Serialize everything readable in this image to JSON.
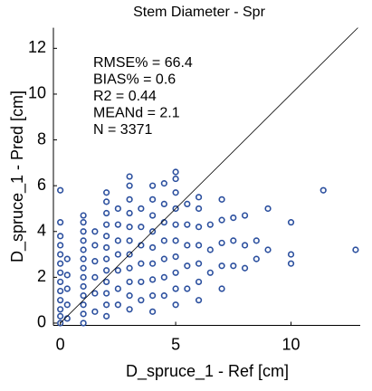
{
  "chart_data": {
    "type": "scatter",
    "title": "Stem Diameter - Spr",
    "xlabel": "D_spruce_1 - Ref [cm]",
    "ylabel": "D_spruce_1 - Pred [cm]",
    "annotations": [
      "RMSE% = 66.4",
      "BIAS% = 0.6",
      "R2 = 0.44",
      "MEANd = 2.1",
      "N = 3371"
    ],
    "color": "#2b4f9e",
    "xlim": [
      -0.3,
      13
    ],
    "ylim": [
      -0.1,
      12.9
    ],
    "xticks": [
      0,
      5,
      10
    ],
    "yticks": [
      0,
      2,
      4,
      6,
      8,
      10,
      12
    ],
    "x": [
      0,
      0,
      0,
      0,
      0,
      0,
      0,
      0,
      0,
      0,
      0,
      0,
      0,
      0.3,
      0.3,
      0.3,
      0.3,
      0.3,
      1,
      1,
      1,
      1,
      1,
      1,
      1,
      1,
      1,
      1,
      1,
      1,
      1,
      1.5,
      1.5,
      1.5,
      1.5,
      1.5,
      1.5,
      2,
      2,
      2,
      2,
      2,
      2,
      2,
      2,
      2,
      2,
      2,
      2,
      2.5,
      2.5,
      2.5,
      2.5,
      2.5,
      2.5,
      2.5,
      3,
      3,
      3,
      3,
      3,
      3,
      3,
      3,
      3,
      3,
      3,
      3.5,
      3.5,
      3.5,
      3.5,
      3.5,
      3.5,
      4,
      4,
      4,
      4,
      4,
      4,
      4,
      4,
      4,
      4.5,
      4.5,
      4.5,
      4.5,
      4.5,
      4.5,
      4.5,
      5,
      5,
      5,
      5,
      5,
      5,
      5,
      5,
      5,
      5,
      5.5,
      5.5,
      5.5,
      5.5,
      5.5,
      6,
      6,
      6,
      6,
      6,
      6,
      6,
      6.5,
      6.5,
      6.5,
      7,
      7,
      7,
      7,
      7,
      7.5,
      7.5,
      7.5,
      8,
      8,
      8,
      8.5,
      8.5,
      9,
      9,
      10,
      10,
      10,
      11.4,
      12.8
    ],
    "values": [
      0,
      0.3,
      0.6,
      1,
      1.4,
      1.8,
      2.2,
      2.6,
      3,
      3.4,
      3.8,
      4.4,
      5.8,
      0.2,
      0.8,
      1.5,
      2.1,
      2.8,
      0,
      0.4,
      0.8,
      1.2,
      1.6,
      2,
      2.4,
      2.8,
      3.2,
      3.6,
      4,
      4.4,
      4.7,
      0.5,
      1.3,
      2,
      2.7,
      3.4,
      4,
      0.3,
      0.8,
      1.3,
      1.8,
      2.3,
      2.8,
      3.3,
      3.8,
      4.3,
      4.8,
      5.3,
      5.7,
      0.8,
      1.5,
      2.3,
      3,
      3.6,
      4.3,
      5,
      0.6,
      1.2,
      1.8,
      2.4,
      3,
      3.6,
      4.2,
      4.8,
      5.4,
      6,
      6.4,
      1,
      1.8,
      2.6,
      3.4,
      4.2,
      5,
      0.5,
      1.2,
      1.9,
      2.6,
      3.3,
      4,
      4.7,
      5.4,
      6,
      1.2,
      2,
      2.8,
      3.6,
      4.4,
      5.2,
      6.1,
      0.8,
      1.5,
      2.2,
      2.9,
      3.6,
      4.3,
      5,
      5.7,
      6.3,
      6.6,
      1.5,
      2.5,
      3.4,
      4.3,
      5.2,
      1,
      1.8,
      2.6,
      3.4,
      4.2,
      5,
      5.5,
      2.2,
      3.2,
      4.3,
      1.5,
      2.5,
      3.5,
      4.5,
      5.4,
      2.5,
      3.6,
      4.6,
      2.4,
      3.4,
      4.7,
      2.8,
      3.6,
      3.2,
      5,
      2.6,
      3,
      4.4,
      5.8,
      3.2
    ]
  }
}
